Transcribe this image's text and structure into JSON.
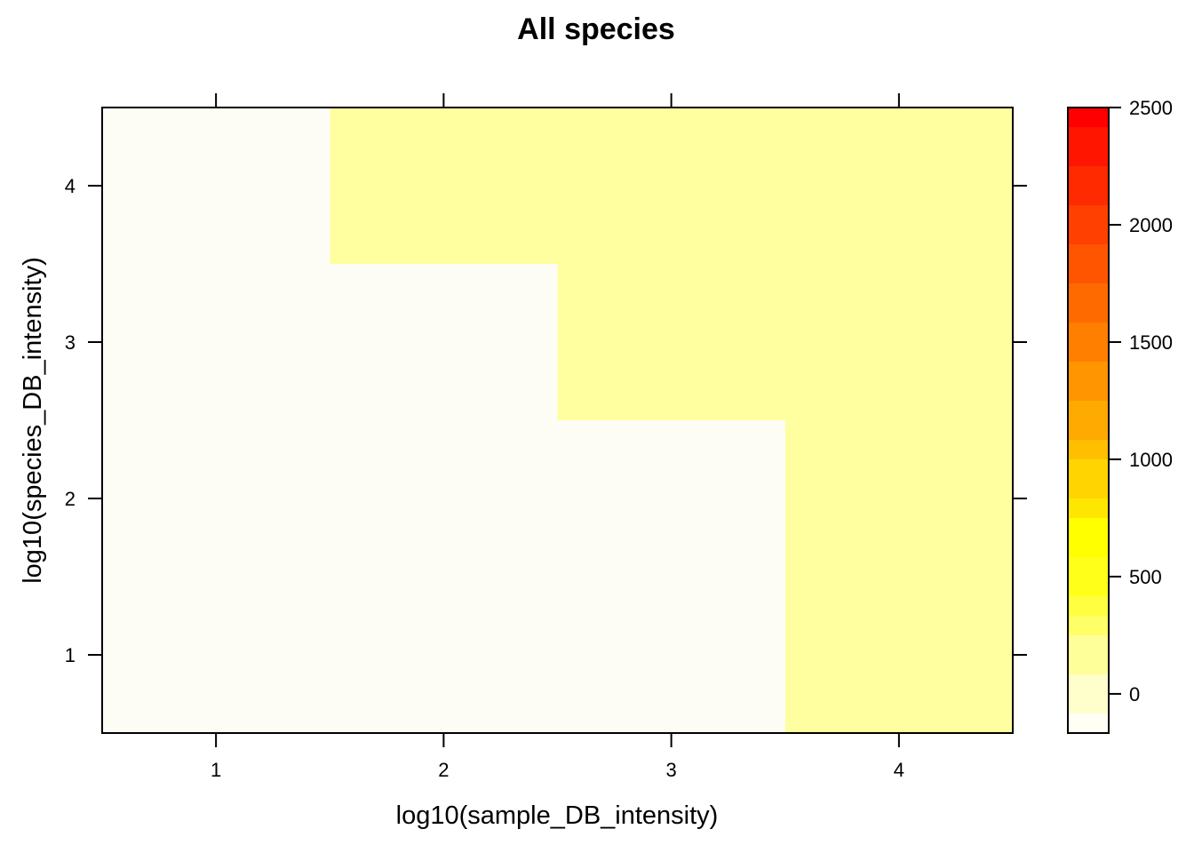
{
  "chart_data": {
    "type": "heatmap",
    "title": "All species",
    "xlabel": "log10(sample_DB_intensity)",
    "ylabel": "log10(species_DB_intensity)",
    "x": [
      1,
      2,
      3,
      4
    ],
    "y": [
      1,
      2,
      3,
      4
    ],
    "xlim": [
      0.5,
      4.5
    ],
    "ylim": [
      0.5,
      4.5
    ],
    "x_ticks": [
      "1",
      "2",
      "3",
      "4"
    ],
    "y_ticks": [
      "1",
      "2",
      "3",
      "4"
    ],
    "cells": [
      {
        "x": 1,
        "y": 1,
        "value": 0
      },
      {
        "x": 2,
        "y": 1,
        "value": 0
      },
      {
        "x": 3,
        "y": 1,
        "value": 0
      },
      {
        "x": 4,
        "y": 1,
        "value": 50
      },
      {
        "x": 1,
        "y": 2,
        "value": 0
      },
      {
        "x": 2,
        "y": 2,
        "value": 0
      },
      {
        "x": 3,
        "y": 2,
        "value": 0
      },
      {
        "x": 4,
        "y": 2,
        "value": 50
      },
      {
        "x": 1,
        "y": 3,
        "value": 0
      },
      {
        "x": 2,
        "y": 3,
        "value": 0
      },
      {
        "x": 3,
        "y": 3,
        "value": 50
      },
      {
        "x": 4,
        "y": 3,
        "value": 50
      },
      {
        "x": 1,
        "y": 4,
        "value": 0
      },
      {
        "x": 2,
        "y": 4,
        "value": 50
      },
      {
        "x": 3,
        "y": 4,
        "value": 50
      },
      {
        "x": 4,
        "y": 4,
        "value": 50
      }
    ],
    "colorbar": {
      "range": [
        -167,
        2500
      ],
      "ticks": [
        "0",
        "500",
        "1000",
        "1500",
        "2000",
        "2500"
      ],
      "tick_values": [
        0,
        500,
        1000,
        1500,
        2000,
        2500
      ],
      "bands": [
        {
          "from": -167,
          "to": -84,
          "color": "#fffff6"
        },
        {
          "from": -84,
          "to": 83,
          "color": "#ffffcc"
        },
        {
          "from": 83,
          "to": 250,
          "color": "#ffff99"
        },
        {
          "from": 250,
          "to": 333,
          "color": "#ffff66"
        },
        {
          "from": 333,
          "to": 417,
          "color": "#ffff40"
        },
        {
          "from": 417,
          "to": 583,
          "color": "#ffff1a"
        },
        {
          "from": 583,
          "to": 750,
          "color": "#ffff00"
        },
        {
          "from": 750,
          "to": 833,
          "color": "#ffe600"
        },
        {
          "from": 833,
          "to": 1000,
          "color": "#ffd400"
        },
        {
          "from": 1000,
          "to": 1083,
          "color": "#ffbf00"
        },
        {
          "from": 1083,
          "to": 1250,
          "color": "#ffaa00"
        },
        {
          "from": 1250,
          "to": 1417,
          "color": "#ff9500"
        },
        {
          "from": 1417,
          "to": 1583,
          "color": "#ff7f00"
        },
        {
          "from": 1583,
          "to": 1750,
          "color": "#ff6a00"
        },
        {
          "from": 1750,
          "to": 1917,
          "color": "#ff5500"
        },
        {
          "from": 1917,
          "to": 2083,
          "color": "#ff4000"
        },
        {
          "from": 2083,
          "to": 2250,
          "color": "#ff2a00"
        },
        {
          "from": 2250,
          "to": 2417,
          "color": "#ff1500"
        },
        {
          "from": 2417,
          "to": 2500,
          "color": "#ff0000"
        }
      ]
    },
    "cell_colors": {
      "0": "#fdfdf6",
      "50": "#ffffa0"
    }
  }
}
